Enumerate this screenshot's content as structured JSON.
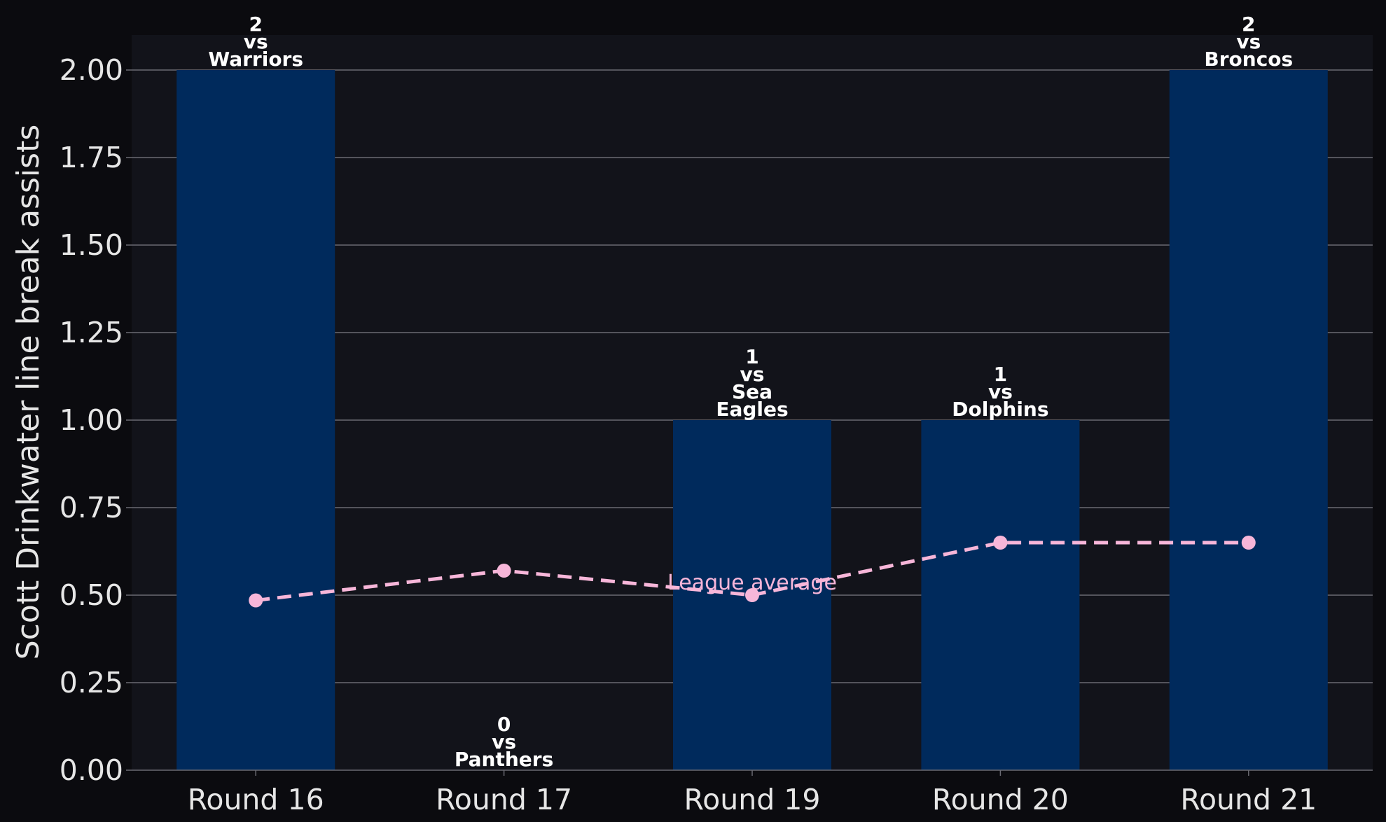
{
  "chart_data": {
    "type": "bar",
    "title": "",
    "xlabel": "",
    "ylabel": "Scott Drinkwater line break assists",
    "ylim": [
      0,
      2.1
    ],
    "yticks": [
      0,
      0.25,
      0.5,
      0.75,
      1.0,
      1.25,
      1.5,
      1.75,
      2.0
    ],
    "ytick_labels": [
      "0.00",
      "0.25",
      "0.50",
      "0.75",
      "1.00",
      "1.25",
      "1.50",
      "1.75",
      "2.00"
    ],
    "grid": true,
    "categories": [
      "Round 16",
      "Round 17",
      "Round 19",
      "Round 20",
      "Round 21"
    ],
    "values": [
      2,
      0,
      1,
      1,
      2
    ],
    "bar_annotations": [
      [
        "2",
        "vs",
        "Warriors"
      ],
      [
        "0",
        "vs",
        "Panthers"
      ],
      [
        "1",
        "vs",
        "Sea",
        "Eagles"
      ],
      [
        "1",
        "vs",
        "Dolphins"
      ],
      [
        "2",
        "vs",
        "Broncos"
      ]
    ],
    "line_series": {
      "values": [
        0.485,
        0.57,
        0.5,
        0.65,
        0.65
      ],
      "label": "League average",
      "style": "dashed"
    },
    "colors": {
      "background": "#0b0b0f",
      "plot_background": "#12131a",
      "bar": "#002a5c",
      "line": "#f7b6d9",
      "grid": "#6a6a72",
      "text": "#e6e6e6"
    }
  }
}
